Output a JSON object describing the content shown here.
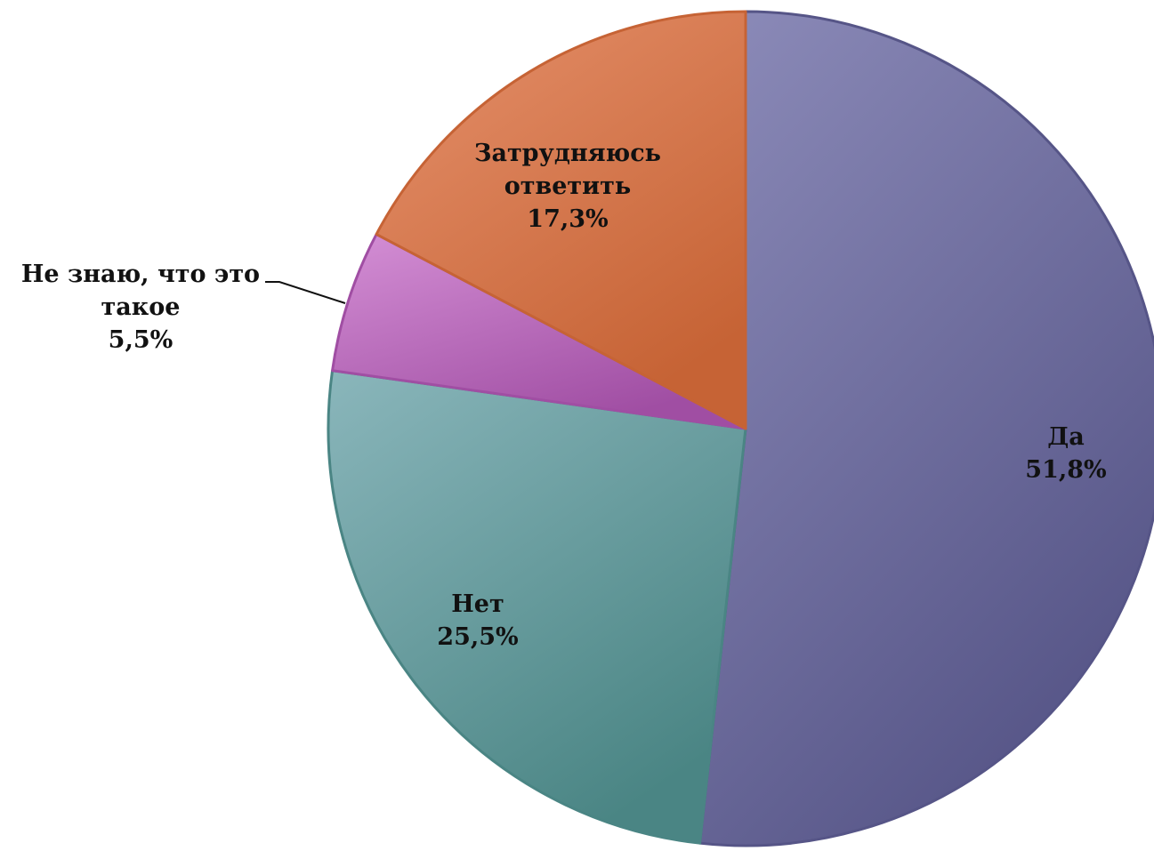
{
  "chart_data": {
    "type": "pie",
    "title": "",
    "slices": [
      {
        "label_lines": [
          "Да"
        ],
        "value": 51.8,
        "value_label": "51,8%",
        "color": "#6b6a9c",
        "color_light": "#8c8bb9",
        "color_dark": "#565587"
      },
      {
        "label_lines": [
          "Нет"
        ],
        "value": 25.5,
        "value_label": "25,5%",
        "color": "#66a1a2",
        "color_light": "#8ab6bb",
        "color_dark": "#4a8584"
      },
      {
        "label_lines": [
          "Не знаю, что это",
          "такое"
        ],
        "value": 5.5,
        "value_label": "5,5%",
        "color": "#b565b8",
        "color_light": "#d48fd5",
        "color_dark": "#a04ea3"
      },
      {
        "label_lines": [
          "Затрудняюсь",
          "ответить"
        ],
        "value": 17.3,
        "value_label": "17,3%",
        "color": "#d9754a",
        "color_light": "#e6916c",
        "color_dark": "#c66335"
      }
    ],
    "start": "12 o'clock",
    "direction": "clockwise",
    "legend": "none"
  }
}
